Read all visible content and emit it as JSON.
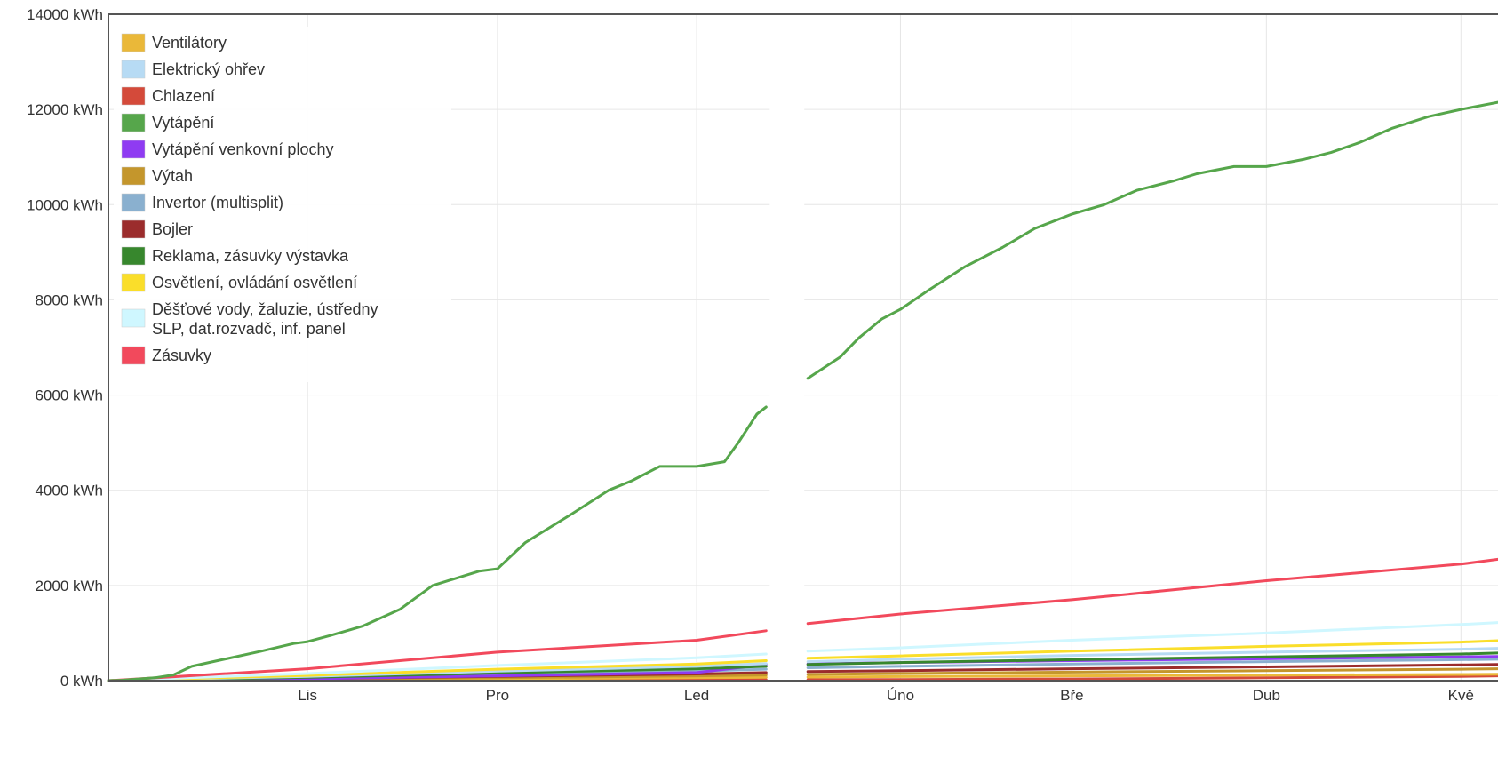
{
  "chart_data": {
    "type": "line",
    "title": "",
    "xlabel": "",
    "ylabel": "",
    "ylim": [
      0,
      14000
    ],
    "yticks": [
      "0 kWh",
      "2000 kWh",
      "4000 kWh",
      "6000 kWh",
      "8000 kWh",
      "10000 kWh",
      "12000 kWh",
      "14000 kWh"
    ],
    "ytick_values": [
      0,
      2000,
      4000,
      6000,
      8000,
      10000,
      12000,
      14000
    ],
    "xlim": [
      0,
      300
    ],
    "xticks": [
      "Lis",
      "Pro",
      "Led",
      "Úno",
      "Bře",
      "Dub",
      "Kvě"
    ],
    "xtick_values": [
      43,
      84,
      127,
      171,
      208,
      250,
      292
    ],
    "gap": [
      142,
      151
    ],
    "grid": true,
    "legend_position": "top-left",
    "legend": [
      {
        "name": "Ventilátory",
        "color": "#eab839"
      },
      {
        "name": "Elektrický ohřev",
        "color": "#b7dbf4"
      },
      {
        "name": "Chlazení",
        "color": "#d44a3a"
      },
      {
        "name": "Vytápění",
        "color": "#56a64b"
      },
      {
        "name": "Vytápění venkovní plochy",
        "color": "#8f3bf2"
      },
      {
        "name": "Výtah",
        "color": "#c4962c"
      },
      {
        "name": "Invertor (multisplit)",
        "color": "#8ab0cf"
      },
      {
        "name": "Bojler",
        "color": "#9b2c2c"
      },
      {
        "name": "Reklama, zásuvky výstavka",
        "color": "#37872d"
      },
      {
        "name": "Osvětlení, ovládání osvětlení",
        "color": "#fade2a"
      },
      {
        "name": "Děšťové vody, žaluzie, ústředny SLP, dat.rozvadč, inf. panel",
        "lines": [
          "Děšťové vody, žaluzie, ústředny",
          "SLP, dat.rozvadč, inf. panel"
        ],
        "color": "#cff7ff"
      },
      {
        "name": "Zásuvky",
        "color": "#f2495c"
      }
    ],
    "series": [
      {
        "name": "Vytápění",
        "color": "#56a64b",
        "points": [
          [
            0,
            0
          ],
          [
            3,
            10
          ],
          [
            10,
            60
          ],
          [
            14,
            120
          ],
          [
            18,
            300
          ],
          [
            25,
            450
          ],
          [
            33,
            620
          ],
          [
            40,
            780
          ],
          [
            43,
            820
          ],
          [
            48,
            950
          ],
          [
            55,
            1150
          ],
          [
            63,
            1500
          ],
          [
            70,
            2000
          ],
          [
            80,
            2300
          ],
          [
            84,
            2350
          ],
          [
            90,
            2900
          ],
          [
            100,
            3500
          ],
          [
            108,
            4000
          ],
          [
            113,
            4200
          ],
          [
            119,
            4500
          ],
          [
            127,
            4500
          ],
          [
            133,
            4600
          ],
          [
            136,
            5000
          ],
          [
            140,
            5600
          ],
          [
            142,
            5750
          ],
          [
            151,
            6350
          ],
          [
            158,
            6800
          ],
          [
            162,
            7200
          ],
          [
            167,
            7600
          ],
          [
            171,
            7800
          ],
          [
            177,
            8200
          ],
          [
            185,
            8700
          ],
          [
            193,
            9100
          ],
          [
            200,
            9500
          ],
          [
            208,
            9800
          ],
          [
            215,
            10000
          ],
          [
            222,
            10300
          ],
          [
            230,
            10500
          ],
          [
            235,
            10650
          ],
          [
            243,
            10800
          ],
          [
            250,
            10800
          ],
          [
            258,
            10950
          ],
          [
            264,
            11100
          ],
          [
            270,
            11300
          ],
          [
            277,
            11600
          ],
          [
            285,
            11850
          ],
          [
            292,
            12000
          ],
          [
            300,
            12150
          ]
        ]
      },
      {
        "name": "Zásuvky",
        "color": "#f2495c",
        "points": [
          [
            0,
            0
          ],
          [
            43,
            250
          ],
          [
            84,
            600
          ],
          [
            127,
            850
          ],
          [
            142,
            1050
          ],
          [
            151,
            1200
          ],
          [
            171,
            1400
          ],
          [
            208,
            1700
          ],
          [
            250,
            2100
          ],
          [
            292,
            2450
          ],
          [
            300,
            2550
          ]
        ]
      },
      {
        "name": "Děšťové vody, žaluzie, ústředny SLP, dat.rozvadč, inf. panel",
        "color": "#cff7ff",
        "points": [
          [
            0,
            0
          ],
          [
            43,
            150
          ],
          [
            84,
            320
          ],
          [
            127,
            480
          ],
          [
            142,
            560
          ],
          [
            151,
            620
          ],
          [
            171,
            690
          ],
          [
            208,
            850
          ],
          [
            250,
            1000
          ],
          [
            292,
            1180
          ],
          [
            300,
            1220
          ]
        ]
      },
      {
        "name": "Osvětlení, ovládání osvětlení",
        "color": "#fade2a",
        "points": [
          [
            0,
            0
          ],
          [
            43,
            110
          ],
          [
            84,
            240
          ],
          [
            127,
            350
          ],
          [
            142,
            420
          ],
          [
            151,
            470
          ],
          [
            171,
            520
          ],
          [
            208,
            620
          ],
          [
            250,
            720
          ],
          [
            292,
            810
          ],
          [
            300,
            840
          ]
        ]
      },
      {
        "name": "Elektrický ohřev",
        "color": "#b7dbf4",
        "points": [
          [
            0,
            0
          ],
          [
            43,
            90
          ],
          [
            84,
            200
          ],
          [
            127,
            300
          ],
          [
            142,
            360
          ],
          [
            151,
            400
          ],
          [
            171,
            450
          ],
          [
            208,
            530
          ],
          [
            250,
            600
          ],
          [
            292,
            660
          ],
          [
            300,
            680
          ]
        ]
      },
      {
        "name": "Reklama, zásuvky výstavka",
        "color": "#37872d",
        "points": [
          [
            0,
            0
          ],
          [
            43,
            70
          ],
          [
            84,
            160
          ],
          [
            127,
            250
          ],
          [
            142,
            300
          ],
          [
            151,
            340
          ],
          [
            171,
            380
          ],
          [
            208,
            440
          ],
          [
            250,
            500
          ],
          [
            292,
            560
          ],
          [
            300,
            580
          ]
        ]
      },
      {
        "name": "Vytápění venkovní plochy",
        "color": "#8f3bf2",
        "points": [
          [
            0,
            0
          ],
          [
            43,
            40
          ],
          [
            84,
            100
          ],
          [
            127,
            170
          ],
          [
            142,
            340
          ],
          [
            151,
            350
          ],
          [
            171,
            380
          ],
          [
            208,
            420
          ],
          [
            250,
            460
          ],
          [
            292,
            500
          ],
          [
            300,
            510
          ]
        ]
      },
      {
        "name": "Invertor (multisplit)",
        "color": "#8ab0cf",
        "points": [
          [
            0,
            0
          ],
          [
            43,
            60
          ],
          [
            84,
            130
          ],
          [
            127,
            200
          ],
          [
            142,
            240
          ],
          [
            151,
            270
          ],
          [
            171,
            300
          ],
          [
            208,
            350
          ],
          [
            250,
            400
          ],
          [
            292,
            440
          ],
          [
            300,
            450
          ]
        ]
      },
      {
        "name": "Bojler",
        "color": "#9b2c2c",
        "points": [
          [
            0,
            0
          ],
          [
            43,
            40
          ],
          [
            84,
            90
          ],
          [
            127,
            140
          ],
          [
            142,
            170
          ],
          [
            151,
            190
          ],
          [
            171,
            210
          ],
          [
            208,
            250
          ],
          [
            250,
            290
          ],
          [
            292,
            330
          ],
          [
            300,
            340
          ]
        ]
      },
      {
        "name": "Výtah",
        "color": "#c4962c",
        "points": [
          [
            0,
            0
          ],
          [
            43,
            30
          ],
          [
            84,
            60
          ],
          [
            127,
            100
          ],
          [
            142,
            120
          ],
          [
            151,
            130
          ],
          [
            171,
            150
          ],
          [
            208,
            180
          ],
          [
            250,
            210
          ],
          [
            292,
            240
          ],
          [
            300,
            250
          ]
        ]
      },
      {
        "name": "Ventilátory",
        "color": "#eab839",
        "points": [
          [
            0,
            0
          ],
          [
            43,
            20
          ],
          [
            84,
            40
          ],
          [
            127,
            60
          ],
          [
            142,
            70
          ],
          [
            151,
            75
          ],
          [
            171,
            85
          ],
          [
            208,
            100
          ],
          [
            250,
            115
          ],
          [
            292,
            130
          ],
          [
            300,
            135
          ]
        ]
      },
      {
        "name": "Chlazení",
        "color": "#d44a3a",
        "points": [
          [
            0,
            0
          ],
          [
            43,
            5
          ],
          [
            84,
            10
          ],
          [
            127,
            15
          ],
          [
            142,
            18
          ],
          [
            151,
            20
          ],
          [
            171,
            25
          ],
          [
            208,
            35
          ],
          [
            250,
            60
          ],
          [
            292,
            90
          ],
          [
            300,
            100
          ]
        ]
      }
    ]
  }
}
